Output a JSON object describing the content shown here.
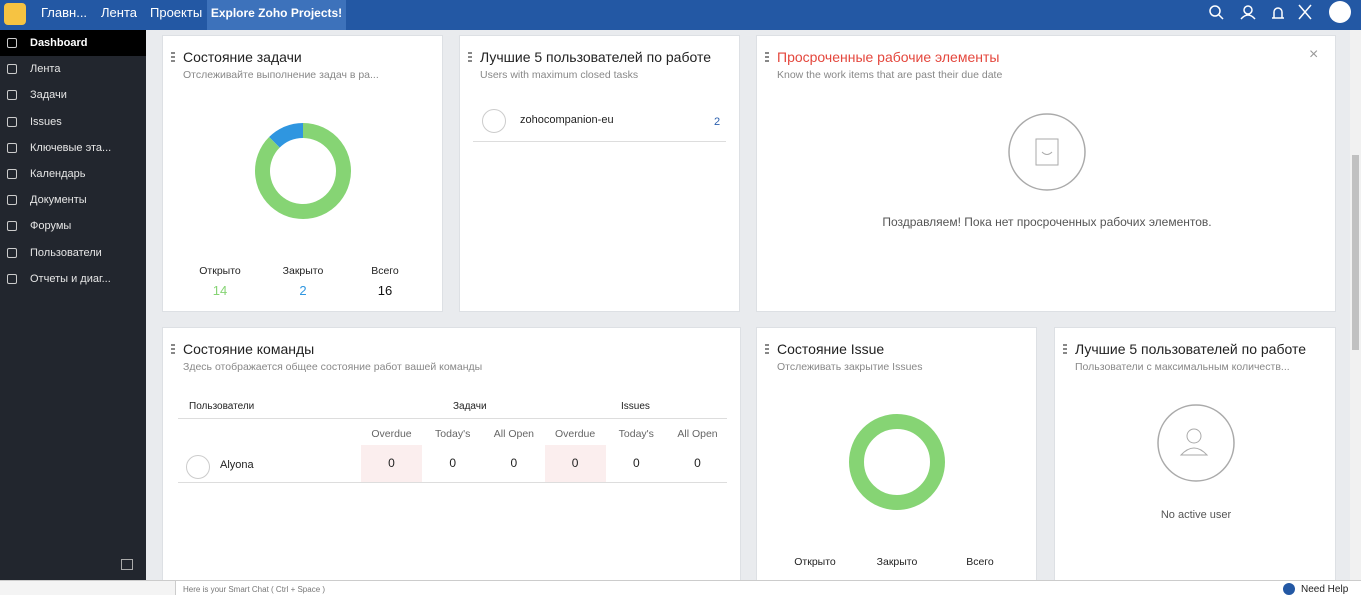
{
  "topbar": {
    "nav": [
      "Главн...",
      "Лента",
      "Проекты",
      "Explore Zoho Projects!"
    ]
  },
  "sidebar": {
    "items": [
      "Dashboard",
      "Лента",
      "Задачи",
      "Issues",
      "Ключевые эта...",
      "Календарь",
      "Документы",
      "Форумы",
      "Пользователи",
      "Отчеты и диаг..."
    ]
  },
  "widgets": {
    "task_status": {
      "title": "Состояние задачи",
      "subtitle": "Отслеживайте выполнение задач в ра...",
      "stats": [
        {
          "label": "Открыто",
          "value": 14,
          "color": "#86d474"
        },
        {
          "label": "Закрыто",
          "value": 2,
          "color": "#2f96e0"
        },
        {
          "label": "Всего",
          "value": 16
        }
      ]
    },
    "top_users": {
      "title": "Лучшие 5 пользователей по работе",
      "subtitle": "Users with maximum closed tasks",
      "rows": [
        {
          "name": "zohocompanion-eu",
          "count": 2
        }
      ]
    },
    "overdue": {
      "title": "Просроченные рабочие элементы",
      "subtitle": "Know the work items that are past their due date",
      "message": "Поздравляем! Пока нет просроченных рабочих элементов."
    },
    "team_status": {
      "title": "Состояние команды",
      "subtitle": "Здесь отображается общее состояние работ вашей команды",
      "groups": [
        "Пользователи",
        "Задачи",
        "Issues"
      ],
      "columns": [
        "Overdue",
        "Today's",
        "All Open",
        "Overdue",
        "Today's",
        "All Open"
      ],
      "rows": [
        {
          "user": "Alyona",
          "values": [
            0,
            0,
            0,
            0,
            0,
            0
          ]
        }
      ]
    },
    "issue_status": {
      "title": "Состояние Issue",
      "subtitle": "Отслеживать закрытие Issues",
      "stats": [
        "Открыто",
        "Закрыто",
        "Всего"
      ]
    },
    "top_users_issues": {
      "title": "Лучшие 5 пользователей по работе",
      "subtitle": "Пользователи с максимальным количеств...",
      "message": "No active user"
    }
  },
  "footer": {
    "smart_chat": "Here is your Smart Chat ( Ctrl + Space )",
    "help": "Need Help"
  }
}
